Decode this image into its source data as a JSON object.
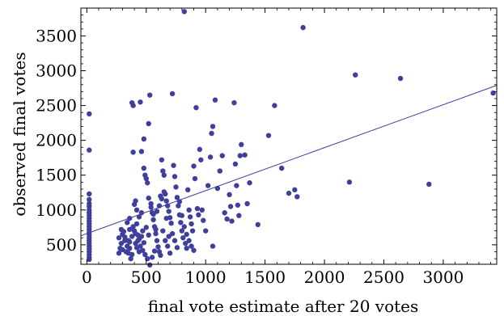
{
  "chart_data": {
    "type": "scatter",
    "xlabel": "final vote estimate after 20 votes",
    "ylabel": "observed final votes",
    "xlim": [
      -50,
      3450
    ],
    "ylim": [
      220,
      3900
    ],
    "xticks": [
      0,
      500,
      1000,
      1500,
      2000,
      2500,
      3000
    ],
    "yticks": [
      500,
      1000,
      1500,
      2000,
      2500,
      3000,
      3500
    ],
    "grid": false,
    "point_color": "#3f3f9c",
    "line_color": "#3f3f9c",
    "fit_line": {
      "x": [
        -50,
        3450
      ],
      "y": [
        630,
        2790
      ]
    },
    "points": [
      [
        20,
        2380
      ],
      [
        20,
        1860
      ],
      [
        20,
        1230
      ],
      [
        20,
        1150
      ],
      [
        20,
        1090
      ],
      [
        20,
        1050
      ],
      [
        20,
        1000
      ],
      [
        20,
        960
      ],
      [
        20,
        920
      ],
      [
        20,
        880
      ],
      [
        20,
        840
      ],
      [
        20,
        800
      ],
      [
        20,
        760
      ],
      [
        20,
        720
      ],
      [
        20,
        680
      ],
      [
        20,
        640
      ],
      [
        20,
        600
      ],
      [
        20,
        560
      ],
      [
        20,
        520
      ],
      [
        20,
        480
      ],
      [
        20,
        440
      ],
      [
        20,
        400
      ],
      [
        20,
        360
      ],
      [
        20,
        320
      ],
      [
        20,
        290
      ],
      [
        270,
        380
      ],
      [
        280,
        450
      ],
      [
        290,
        520
      ],
      [
        300,
        430
      ],
      [
        310,
        690
      ],
      [
        320,
        610
      ],
      [
        330,
        400
      ],
      [
        340,
        480
      ],
      [
        350,
        560
      ],
      [
        360,
        720
      ],
      [
        370,
        300
      ],
      [
        380,
        360
      ],
      [
        380,
        2540
      ],
      [
        390,
        2500
      ],
      [
        390,
        1830
      ],
      [
        400,
        1080
      ],
      [
        410,
        1130
      ],
      [
        420,
        1000
      ],
      [
        430,
        640
      ],
      [
        440,
        580
      ],
      [
        450,
        2550
      ],
      [
        460,
        1840
      ],
      [
        470,
        700
      ],
      [
        480,
        2020
      ],
      [
        480,
        1600
      ],
      [
        490,
        1500
      ],
      [
        500,
        1450
      ],
      [
        510,
        1390
      ],
      [
        520,
        2240
      ],
      [
        520,
        1170
      ],
      [
        530,
        2650
      ],
      [
        540,
        1090
      ],
      [
        550,
        960
      ],
      [
        560,
        860
      ],
      [
        570,
        760
      ],
      [
        580,
        660
      ],
      [
        590,
        560
      ],
      [
        600,
        470
      ],
      [
        610,
        400
      ],
      [
        620,
        350
      ],
      [
        630,
        1720
      ],
      [
        640,
        1560
      ],
      [
        650,
        1500
      ],
      [
        660,
        1230
      ],
      [
        670,
        1130
      ],
      [
        680,
        1060
      ],
      [
        690,
        980
      ],
      [
        700,
        890
      ],
      [
        710,
        810
      ],
      [
        720,
        2670
      ],
      [
        730,
        1640
      ],
      [
        740,
        1480
      ],
      [
        750,
        1330
      ],
      [
        760,
        1180
      ],
      [
        770,
        1060
      ],
      [
        780,
        930
      ],
      [
        790,
        820
      ],
      [
        800,
        700
      ],
      [
        810,
        600
      ],
      [
        820,
        3850
      ],
      [
        830,
        520
      ],
      [
        840,
        450
      ],
      [
        850,
        1290
      ],
      [
        860,
        1000
      ],
      [
        870,
        900
      ],
      [
        880,
        800
      ],
      [
        890,
        700
      ],
      [
        900,
        1630
      ],
      [
        910,
        1450
      ],
      [
        920,
        2470
      ],
      [
        930,
        1020
      ],
      [
        940,
        930
      ],
      [
        950,
        1870
      ],
      [
        960,
        1720
      ],
      [
        970,
        1000
      ],
      [
        980,
        850
      ],
      [
        1000,
        700
      ],
      [
        1020,
        1350
      ],
      [
        1040,
        1760
      ],
      [
        1050,
        2100
      ],
      [
        1060,
        2200
      ],
      [
        1060,
        480
      ],
      [
        1080,
        2580
      ],
      [
        1100,
        1310
      ],
      [
        1120,
        1560
      ],
      [
        1140,
        1780
      ],
      [
        1160,
        960
      ],
      [
        1180,
        870
      ],
      [
        1200,
        1220
      ],
      [
        1210,
        1050
      ],
      [
        1220,
        840
      ],
      [
        1240,
        2540
      ],
      [
        1250,
        1660
      ],
      [
        1260,
        1350
      ],
      [
        1270,
        1070
      ],
      [
        1280,
        920
      ],
      [
        1290,
        1780
      ],
      [
        1300,
        1940
      ],
      [
        1330,
        1790
      ],
      [
        1350,
        1090
      ],
      [
        1370,
        1390
      ],
      [
        1440,
        790
      ],
      [
        1530,
        2070
      ],
      [
        1580,
        2500
      ],
      [
        1640,
        1600
      ],
      [
        1700,
        1240
      ],
      [
        1750,
        1290
      ],
      [
        1770,
        1190
      ],
      [
        1820,
        3620
      ],
      [
        2210,
        1400
      ],
      [
        2260,
        2940
      ],
      [
        2640,
        2890
      ],
      [
        2880,
        1370
      ],
      [
        3420,
        2680
      ],
      [
        300,
        650
      ],
      [
        320,
        560
      ],
      [
        350,
        380
      ],
      [
        360,
        450
      ],
      [
        410,
        520
      ],
      [
        420,
        460
      ],
      [
        440,
        400
      ],
      [
        460,
        620
      ],
      [
        480,
        530
      ],
      [
        500,
        750
      ],
      [
        520,
        640
      ],
      [
        540,
        1040
      ],
      [
        560,
        940
      ],
      [
        580,
        720
      ],
      [
        620,
        1200
      ],
      [
        640,
        700
      ],
      [
        660,
        560
      ],
      [
        680,
        480
      ],
      [
        700,
        380
      ],
      [
        720,
        660
      ],
      [
        740,
        560
      ],
      [
        760,
        460
      ],
      [
        780,
        1120
      ],
      [
        800,
        920
      ],
      [
        820,
        760
      ],
      [
        840,
        650
      ],
      [
        860,
        560
      ],
      [
        880,
        480
      ],
      [
        900,
        420
      ],
      [
        360,
        540
      ],
      [
        380,
        620
      ],
      [
        400,
        700
      ],
      [
        420,
        800
      ],
      [
        440,
        900
      ],
      [
        460,
        960
      ],
      [
        270,
        600
      ],
      [
        290,
        720
      ],
      [
        340,
        820
      ],
      [
        360,
        880
      ],
      [
        390,
        760
      ],
      [
        410,
        660
      ],
      [
        430,
        560
      ],
      [
        450,
        480
      ],
      [
        470,
        420
      ],
      [
        490,
        360
      ],
      [
        510,
        300
      ],
      [
        530,
        210
      ],
      [
        550,
        320
      ],
      [
        570,
        410
      ],
      [
        590,
        980
      ],
      [
        610,
        1060
      ],
      [
        630,
        1160
      ],
      [
        650,
        1260
      ],
      [
        670,
        880
      ],
      [
        690,
        620
      ]
    ]
  }
}
